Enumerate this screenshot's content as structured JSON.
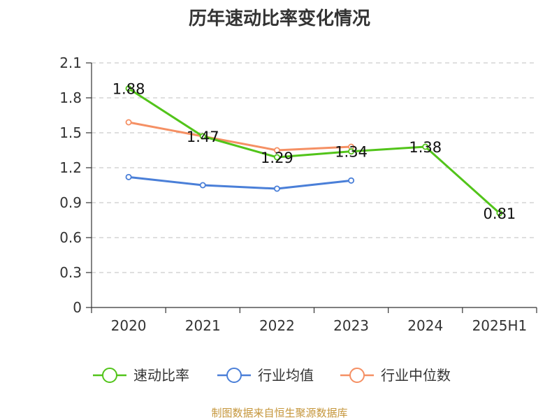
{
  "chart_data": {
    "type": "line",
    "title": "历年速动比率变化情况",
    "categories": [
      "2020",
      "2021",
      "2022",
      "2023",
      "2024",
      "2025H1"
    ],
    "ylim": [
      0,
      2.1
    ],
    "yticks": [
      "0",
      "0.3",
      "0.6",
      "0.9",
      "1.2",
      "1.5",
      "1.8",
      "2.1"
    ],
    "grid": true,
    "legend_position": "bottom",
    "series": [
      {
        "name": "速动比率",
        "color": "#52c41a",
        "values": [
          1.88,
          1.47,
          1.29,
          1.34,
          1.38,
          0.81
        ],
        "labels": [
          "1.88",
          "1.47",
          "1.29",
          "1.34",
          "1.38",
          "0.81"
        ]
      },
      {
        "name": "行业均值",
        "color": "#4a7fd8",
        "values": [
          1.12,
          1.05,
          1.02,
          1.09,
          null,
          null
        ]
      },
      {
        "name": "行业中位数",
        "color": "#f59064",
        "values": [
          1.59,
          1.47,
          1.35,
          1.38,
          null,
          null
        ]
      }
    ]
  },
  "source": "制图数据来自恒生聚源数据库"
}
